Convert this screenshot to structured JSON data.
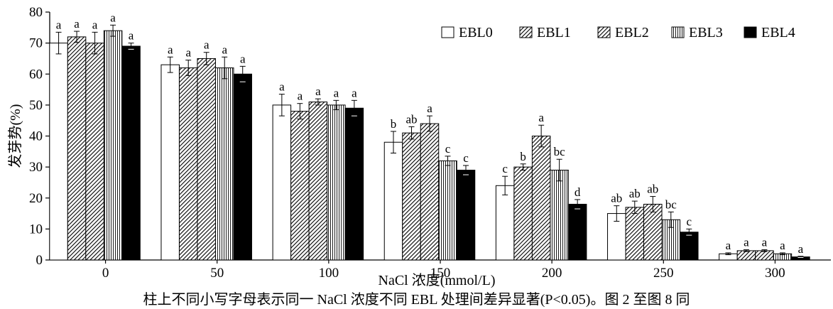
{
  "chart_data": {
    "type": "bar",
    "ylabel": "发芽势(%)",
    "xlabel": "NaCl 浓度(mmol/L)",
    "ylim": [
      0,
      80
    ],
    "yticks": [
      0,
      10,
      20,
      30,
      40,
      50,
      60,
      70,
      80
    ],
    "grid": false,
    "legend_position": "top-right",
    "categories": [
      "0",
      "50",
      "100",
      "150",
      "200",
      "250",
      "300"
    ],
    "series": [
      {
        "name": "EBL0",
        "pattern": "white",
        "values": [
          70,
          63,
          50,
          38,
          24,
          15,
          2
        ],
        "errors": [
          3.5,
          2.5,
          3.5,
          3.5,
          3,
          2.5,
          0.3
        ],
        "labels": [
          "a",
          "a",
          "a",
          "b",
          "c",
          "ab",
          "a"
        ]
      },
      {
        "name": "EBL1",
        "pattern": "hatch",
        "values": [
          72,
          62,
          48,
          41,
          30,
          17,
          3
        ],
        "errors": [
          1.8,
          2.5,
          2.5,
          2,
          1,
          2,
          0.3
        ],
        "labels": [
          "a",
          "a",
          "a",
          "ab",
          "b",
          "ab",
          "a"
        ]
      },
      {
        "name": "EBL2",
        "pattern": "hatch",
        "values": [
          70,
          65,
          51,
          44,
          40,
          18,
          3
        ],
        "errors": [
          3.5,
          2,
          1,
          2.5,
          3.5,
          2.5,
          0.3
        ],
        "labels": [
          "a",
          "a",
          "a",
          "a",
          "a",
          "ab",
          "a"
        ]
      },
      {
        "name": "EBL3",
        "pattern": "vlines",
        "values": [
          74,
          62,
          50,
          32,
          29,
          13,
          2
        ],
        "errors": [
          1.8,
          3.5,
          1.5,
          1.5,
          3.5,
          2.5,
          0.3
        ],
        "labels": [
          "a",
          "a",
          "a",
          "c",
          "bc",
          "bc",
          "a"
        ]
      },
      {
        "name": "EBL4",
        "pattern": "black",
        "values": [
          69,
          60,
          49,
          29,
          18,
          9,
          1
        ],
        "errors": [
          1,
          2.5,
          2.5,
          1.5,
          1.5,
          1,
          0.2
        ],
        "labels": [
          "a",
          "a",
          "a",
          "c",
          "d",
          "c",
          "a"
        ]
      }
    ]
  },
  "caption": "柱上不同小写字母表示同一 NaCl 浓度不同 EBL 处理间差异显著(P<0.05)。图 2 至图 8 同"
}
